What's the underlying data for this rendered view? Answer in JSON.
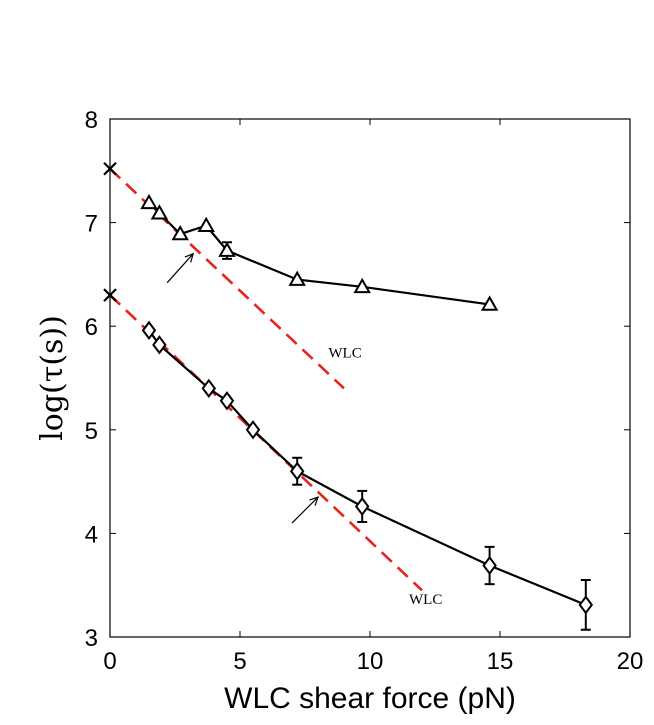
{
  "chart_data": {
    "type": "line",
    "xlabel": "WLC shear force (pN)",
    "ylabel": "log(τ(s))",
    "xlim": [
      0,
      20
    ],
    "ylim": [
      3,
      8
    ],
    "xticks": [
      0,
      5,
      10,
      15,
      20
    ],
    "yticks": [
      3,
      4,
      5,
      6,
      7,
      8
    ],
    "grid": false,
    "colors": {
      "data": "#000000",
      "fit": "#e8231d"
    },
    "series": [
      {
        "marker": "triangle",
        "x": [
          1.5,
          1.9,
          2.7,
          3.7,
          4.5,
          7.2,
          9.7,
          14.6
        ],
        "y": [
          7.19,
          7.09,
          6.89,
          6.97,
          6.73,
          6.45,
          6.38,
          6.21
        ],
        "yerr": [
          0,
          0,
          0,
          0,
          0.08,
          0,
          0,
          0
        ]
      },
      {
        "marker": "diamond",
        "x": [
          1.5,
          1.9,
          3.8,
          4.5,
          5.5,
          7.2,
          9.7,
          14.6,
          18.3
        ],
        "y": [
          5.96,
          5.82,
          5.4,
          5.28,
          5.0,
          4.6,
          4.26,
          3.69,
          3.31
        ],
        "yerr": [
          0,
          0,
          0,
          0,
          0,
          0.13,
          0.15,
          0.18,
          0.24
        ]
      }
    ],
    "fit_lines": [
      {
        "x": [
          0,
          9
        ],
        "y": [
          7.52,
          5.4
        ],
        "label": "WLC"
      },
      {
        "x": [
          0,
          12
        ],
        "y": [
          6.3,
          3.45
        ],
        "label": "WLC"
      }
    ],
    "intercept_marks": [
      {
        "x": 0,
        "y": 7.52
      },
      {
        "x": 0,
        "y": 6.3
      }
    ],
    "arrows": [
      {
        "from": [
          2.2,
          6.42
        ],
        "to": [
          3.2,
          6.7
        ]
      },
      {
        "from": [
          7.0,
          4.1
        ],
        "to": [
          8.0,
          4.35
        ]
      }
    ],
    "wlc_labels": [
      {
        "text": "WLC",
        "x": 8.4,
        "y": 5.7
      },
      {
        "text": "WLC",
        "x": 11.5,
        "y": 3.32
      }
    ]
  }
}
